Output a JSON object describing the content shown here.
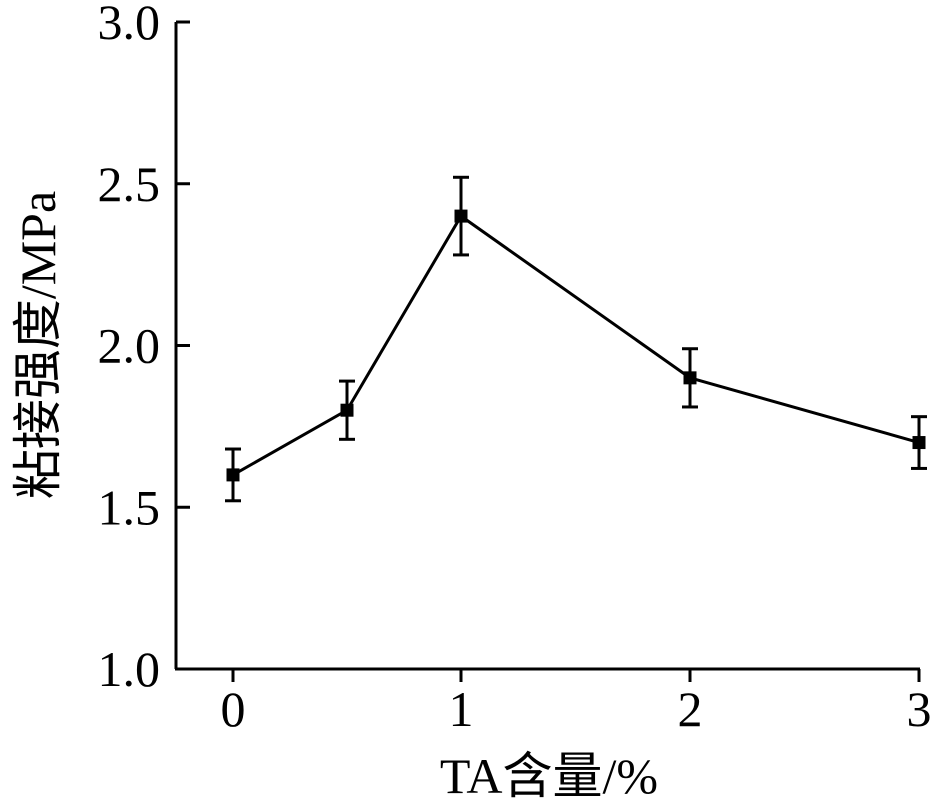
{
  "chart_data": {
    "type": "line",
    "title": "",
    "xlabel": "TA含量/%",
    "ylabel": "粘接强度/MPa",
    "x": [
      0,
      0.5,
      1,
      2,
      3
    ],
    "x_scale": "piecewise-linear (0–1 expanded, 1–3 compressed)",
    "xticks": [
      0,
      1,
      2,
      3
    ],
    "xtick_labels": [
      "0",
      "1",
      "2",
      "3"
    ],
    "ylim": [
      1.0,
      3.0
    ],
    "yticks": [
      1.0,
      1.5,
      2.0,
      2.5,
      3.0
    ],
    "ytick_labels": [
      "1.0",
      "1.5",
      "2.0",
      "2.5",
      "3.0"
    ],
    "series": [
      {
        "values": [
          1.6,
          1.8,
          2.4,
          1.9,
          1.7
        ],
        "error": [
          0.08,
          0.09,
          0.12,
          0.09,
          0.08
        ],
        "marker": "square",
        "color": "#000000"
      }
    ],
    "grid": false,
    "legend": "none"
  }
}
